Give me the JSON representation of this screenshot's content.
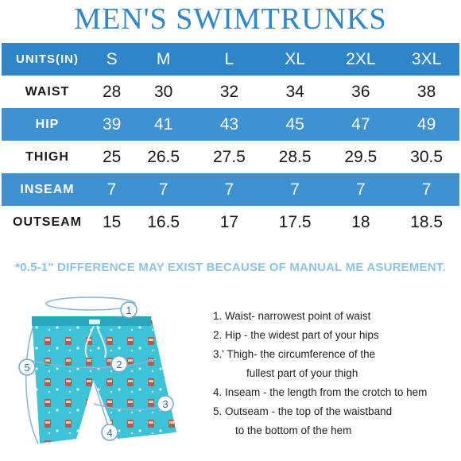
{
  "title": "MEN'S SWIMTRUNKS",
  "table": {
    "header": {
      "label": "UNITS(IN)",
      "sizes": [
        "S",
        "M",
        "L",
        "XL",
        "2XL",
        "3XL"
      ]
    },
    "rows": [
      {
        "label": "WAIST",
        "values": [
          "28",
          "30",
          "32",
          "34",
          "36",
          "38"
        ]
      },
      {
        "label": "HIP",
        "values": [
          "39",
          "41",
          "43",
          "45",
          "47",
          "49"
        ]
      },
      {
        "label": "THIGH",
        "values": [
          "25",
          "26.5",
          "27.5",
          "28.5",
          "29.5",
          "30.5"
        ]
      },
      {
        "label": "INSEAM",
        "values": [
          "7",
          "7",
          "7",
          "7",
          "7",
          "7"
        ]
      },
      {
        "label": "OUTSEAM",
        "values": [
          "15",
          "16.5",
          "17",
          "17.5",
          "18",
          "18.5"
        ]
      }
    ]
  },
  "note": "*0.5-1\" DIFFERENCE MAY EXIST BECAUSE OF MANUAL ME ASUREMENT.",
  "diagram": {
    "markers": [
      "1",
      "2",
      "3",
      "4",
      "5"
    ],
    "colors": {
      "shorts": "#3cc3d8",
      "shorts_dark": "#2aa6bd",
      "marker_stroke": "#6fa8d6",
      "guide": "#8ab4d8"
    }
  },
  "steps": {
    "s1": "1. Waist- narrowest point of waist",
    "s2": "2. Hip - the widest part of your hips",
    "s3a": "3.' Thigh- the circumference of the",
    "s3b": "fullest part of your thigh",
    "s4": "4. Inseam - the length from the crotch to hem",
    "s5a": "5. Outseam - the top of the waistband",
    "s5b": "to the bottom of the hem"
  }
}
